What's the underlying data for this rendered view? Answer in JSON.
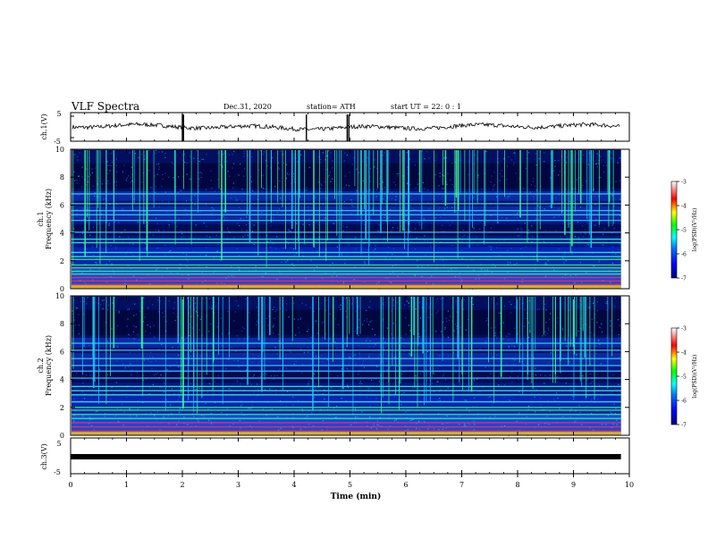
{
  "header": {
    "title": "VLF Spectra",
    "date": "Dec.31, 2020",
    "station": "station= ATH",
    "start": "start  UT =   22: 0   : 1"
  },
  "chart_data": [
    {
      "type": "line",
      "panel": "ch1-waveform",
      "ylabel": "ch.1(V)",
      "ylim": [
        -5,
        5
      ],
      "yticks": [
        "5",
        "-5"
      ],
      "xlim": [
        0,
        10
      ],
      "baseline_v": 0.0,
      "noise_amplitude_v": 1.3,
      "spikes_min": [
        2.0,
        2.02,
        4.22,
        4.95,
        4.98
      ]
    },
    {
      "type": "heatmap",
      "panel": "ch1-spectrogram",
      "ylabel": "ch.1",
      "ylabel2": "Frequency  (kHz)",
      "ylim": [
        0,
        10
      ],
      "yticks": [
        "0",
        "2",
        "4",
        "6",
        "8",
        "10"
      ],
      "xlim": [
        0,
        10
      ],
      "data_end_min": 9.85,
      "colorbar": {
        "label": "log(PSD)(V²/Hz)",
        "range": [
          -7,
          -3
        ],
        "ticks": [
          "-3",
          "-4",
          "-5",
          "-6",
          "-7"
        ]
      },
      "lines_khz": [
        0.3,
        0.55,
        0.8,
        1.05,
        1.25,
        1.5,
        1.7,
        2.1,
        2.3,
        2.6,
        3.3,
        3.55,
        4.05,
        4.9,
        5.3,
        5.6,
        6.1,
        6.8
      ]
    },
    {
      "type": "heatmap",
      "panel": "ch2-spectrogram",
      "ylabel": "ch.2",
      "ylabel2": "Frequency  (kHz)",
      "ylim": [
        0,
        10
      ],
      "yticks": [
        "0",
        "2",
        "4",
        "6",
        "8",
        "10"
      ],
      "xlim": [
        0,
        10
      ],
      "data_end_min": 9.85,
      "colorbar": {
        "label": "log(PSD)(V²/Hz)",
        "range": [
          -7,
          -3
        ],
        "ticks": [
          "-3",
          "-4",
          "-5",
          "-6",
          "-7"
        ]
      },
      "lines_khz": [
        0.3,
        0.6,
        0.9,
        1.2,
        1.5,
        1.8,
        2.0,
        2.4,
        2.9,
        3.2,
        3.5,
        4.1,
        4.6,
        5.0,
        5.5,
        6.1,
        6.6
      ]
    },
    {
      "type": "line",
      "panel": "ch3-waveform",
      "ylabel": "ch.3(V)",
      "ylim": [
        -5,
        5
      ],
      "yticks": [
        "5",
        "-5"
      ],
      "xlim": [
        0,
        10
      ],
      "xlabel": "Time  (min)",
      "xticks": [
        "0",
        "1",
        "2",
        "3",
        "4",
        "5",
        "6",
        "7",
        "8",
        "9",
        "10"
      ],
      "baseline_v": 0.0,
      "data_end_min": 9.85
    }
  ]
}
